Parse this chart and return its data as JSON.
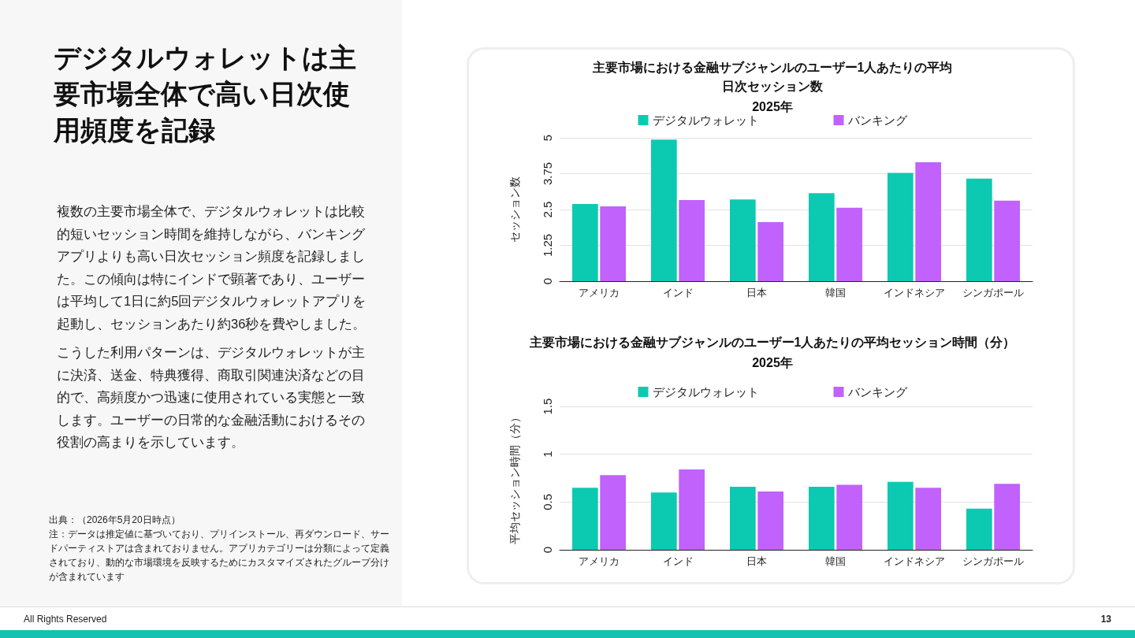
{
  "chart_data": [
    {
      "type": "other",
      "title": "デジタルウォレットは主要市場全体で高い日次使用頻度を記録",
      "annotations": [
        "複数の主要市場全体で、デジタルウォレットは比較的短いセッション時間を維持しながら、バンキングアプリよりも高い日次セッション頻度を記録しました。この傾向は特にインドで顕著であり、ユーザーは平均して1日に約5回デジタルウォレットアプリを起動し、セッションあたり約36秒を費やしました。",
        "こうした利用パターンは、デジタルウォレットが主に決済、送金、特典獲得、商取引関連決済などの目的で、高頻度かつ迅速に使用されている実態と一致します。ユーザーの日常的な金融活動におけるその役割の高まりを示しています。",
        "出典：（2026年5月20日時点）",
        "注：データは推定値に基づいており、プリインストール、再ダウンロード、サードパーティストアは含まれておりません。アプリカテゴリーは分類によって定義されており、動的な市場環境を反映するためにカスタマイズされたグループ分けが含まれています",
        "All Rights Reserved",
        "13"
      ]
    },
    {
      "type": "bar",
      "title": "主要市場における金融サブジャンルのユーザー1人あたりの平均日次セッション数",
      "subtitle": "2025年",
      "ylabel": "セッション数",
      "categories": [
        "アメリカ",
        "インド",
        "日本",
        "韓国",
        "インドネシア",
        "シンガポール"
      ],
      "series": [
        {
          "name": "デジタルウォレット",
          "color": "#0ccab1",
          "values": [
            2.69,
            4.94,
            2.85,
            3.07,
            3.78,
            3.58
          ]
        },
        {
          "name": "バンキング",
          "color": "#c062fb",
          "values": [
            2.61,
            2.83,
            2.06,
            2.56,
            4.15,
            2.81
          ]
        }
      ],
      "ylim": [
        0,
        5
      ],
      "yticks": [
        0,
        1.25,
        2.5,
        3.75,
        5
      ],
      "grid": "y",
      "legend": "top"
    },
    {
      "type": "bar",
      "title": "主要市場における金融サブジャンルのユーザー1人あたりの平均セッション時間（分）",
      "subtitle": "2025年",
      "ylabel": "平均セッション時間（分）",
      "categories": [
        "アメリカ",
        "インド",
        "日本",
        "韓国",
        "インドネシア",
        "シンガポール"
      ],
      "series": [
        {
          "name": "デジタルウォレット",
          "color": "#0ccab1",
          "values": [
            0.65,
            0.6,
            0.66,
            0.66,
            0.71,
            0.43
          ]
        },
        {
          "name": "バンキング",
          "color": "#c062fb",
          "values": [
            0.78,
            0.84,
            0.61,
            0.68,
            0.65,
            0.69
          ]
        }
      ],
      "ylim": [
        0,
        1.5
      ],
      "yticks": [
        0,
        0.5,
        1,
        1.5
      ],
      "grid": "y",
      "legend": "top"
    }
  ]
}
